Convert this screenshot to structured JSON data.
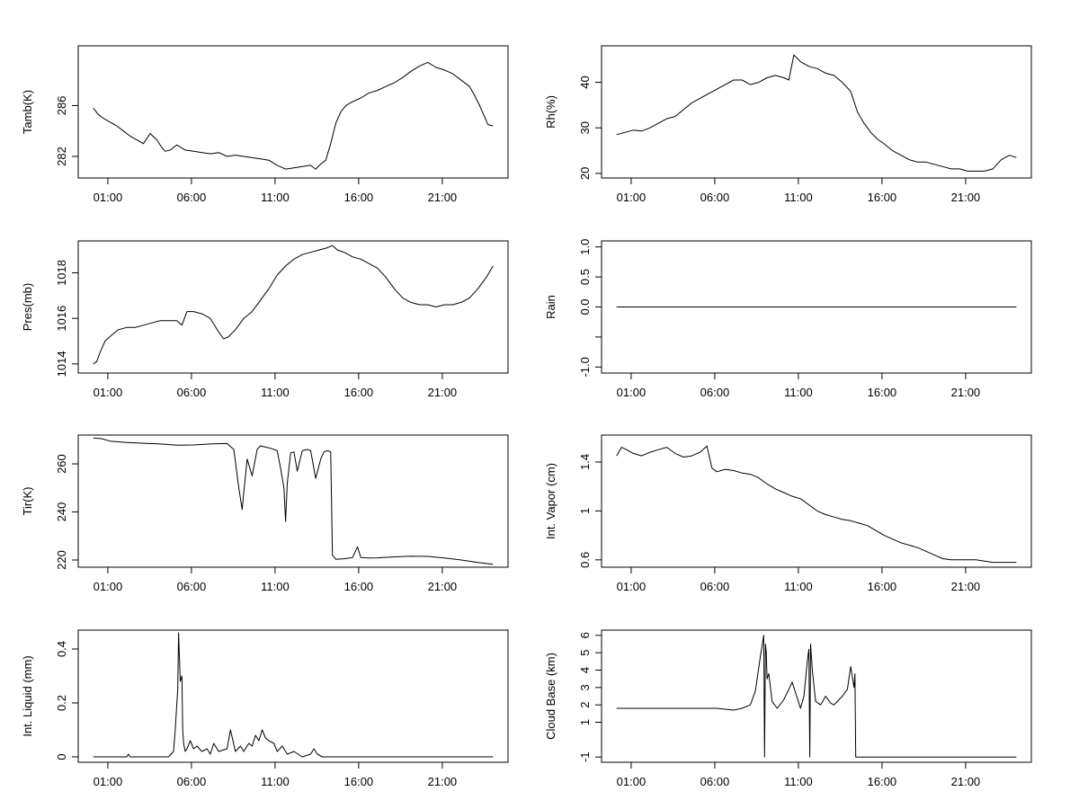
{
  "chart_data": [
    {
      "type": "line",
      "ylabel": "Tamb(K)",
      "xticks": [
        "01:00",
        "06:00",
        "11:00",
        "16:00",
        "21:00"
      ],
      "yticks": [
        282,
        286
      ],
      "ylim": [
        280.3,
        290.7
      ],
      "x": [
        0.0,
        0.3,
        0.6,
        1.0,
        1.4,
        1.8,
        2.2,
        2.6,
        3.0,
        3.4,
        3.8,
        4.1,
        4.3,
        4.6,
        5.0,
        5.5,
        6.0,
        6.5,
        7.0,
        7.5,
        8.0,
        8.5,
        9.0,
        9.5,
        10.0,
        10.5,
        11.0,
        11.5,
        12.0,
        12.5,
        13.0,
        13.3,
        13.6,
        13.9,
        14.2,
        14.5,
        14.8,
        15.1,
        15.5,
        16.0,
        16.5,
        17.0,
        17.5,
        18.0,
        18.5,
        19.0,
        19.5,
        20.0,
        20.5,
        21.0,
        21.5,
        22.0,
        22.5,
        22.8,
        23.1,
        23.4,
        23.6,
        23.9
      ],
      "y": [
        285.8,
        285.3,
        285.0,
        284.7,
        284.4,
        284.0,
        283.6,
        283.3,
        283.0,
        283.8,
        283.3,
        282.7,
        282.4,
        282.5,
        282.9,
        282.5,
        282.4,
        282.3,
        282.2,
        282.3,
        282.0,
        282.1,
        282.0,
        281.9,
        281.8,
        281.7,
        281.3,
        281.0,
        281.1,
        281.2,
        281.3,
        281.0,
        281.4,
        281.7,
        283.0,
        284.6,
        285.5,
        286.0,
        286.3,
        286.6,
        287.0,
        287.2,
        287.5,
        287.8,
        288.2,
        288.7,
        289.1,
        289.4,
        289.0,
        288.8,
        288.5,
        288.0,
        287.5,
        286.8,
        286.0,
        285.1,
        284.5,
        284.4
      ]
    },
    {
      "type": "line",
      "ylabel": "Rh(%)",
      "xticks": [
        "01:00",
        "06:00",
        "11:00",
        "16:00",
        "21:00"
      ],
      "yticks": [
        20,
        30,
        40
      ],
      "ylim": [
        19,
        48
      ],
      "x": [
        0.0,
        0.5,
        1.0,
        1.5,
        2.0,
        2.5,
        3.0,
        3.5,
        4.0,
        4.5,
        5.0,
        5.5,
        6.0,
        6.5,
        7.0,
        7.5,
        8.0,
        8.5,
        9.0,
        9.5,
        10.0,
        10.3,
        10.6,
        11.0,
        11.5,
        12.0,
        12.5,
        13.0,
        13.5,
        14.0,
        14.4,
        14.8,
        15.2,
        15.6,
        16.0,
        16.5,
        17.0,
        17.5,
        18.0,
        18.5,
        19.0,
        19.5,
        20.0,
        20.5,
        21.0,
        21.5,
        22.0,
        22.5,
        23.0,
        23.5,
        23.9
      ],
      "y": [
        28.5,
        29.0,
        29.5,
        29.3,
        30.0,
        31.0,
        32.0,
        32.5,
        34.0,
        35.5,
        36.5,
        37.5,
        38.5,
        39.5,
        40.5,
        40.5,
        39.5,
        40.0,
        41.0,
        41.5,
        41.0,
        40.5,
        46.0,
        44.5,
        43.5,
        43.0,
        42.0,
        41.5,
        40.0,
        38.0,
        33.5,
        31.0,
        29.0,
        27.5,
        26.5,
        25.0,
        24.0,
        23.0,
        22.5,
        22.5,
        22.0,
        21.5,
        21.0,
        21.0,
        20.5,
        20.5,
        20.5,
        21.0,
        23.0,
        24.0,
        23.5
      ]
    },
    {
      "type": "line",
      "ylabel": "Pres(mb)",
      "xticks": [
        "01:00",
        "06:00",
        "11:00",
        "16:00",
        "21:00"
      ],
      "yticks": [
        1014,
        1016,
        1018
      ],
      "ylim": [
        1013.6,
        1019.4
      ],
      "x": [
        0.0,
        0.2,
        0.4,
        0.7,
        1.0,
        1.5,
        2.0,
        2.5,
        3.0,
        3.5,
        4.0,
        4.5,
        5.0,
        5.3,
        5.6,
        6.0,
        6.5,
        7.0,
        7.5,
        7.8,
        8.1,
        8.5,
        9.0,
        9.5,
        10.0,
        10.5,
        11.0,
        11.5,
        12.0,
        12.5,
        13.0,
        13.5,
        14.0,
        14.3,
        14.6,
        15.0,
        15.5,
        16.0,
        16.5,
        17.0,
        17.5,
        18.0,
        18.5,
        19.0,
        19.5,
        20.0,
        20.5,
        21.0,
        21.5,
        22.0,
        22.5,
        23.0,
        23.5,
        23.9
      ],
      "y": [
        1014.0,
        1014.1,
        1014.5,
        1015.0,
        1015.2,
        1015.5,
        1015.6,
        1015.6,
        1015.7,
        1015.8,
        1015.9,
        1015.9,
        1015.9,
        1015.7,
        1016.3,
        1016.3,
        1016.2,
        1016.0,
        1015.4,
        1015.1,
        1015.2,
        1015.5,
        1016.0,
        1016.3,
        1016.8,
        1017.3,
        1017.9,
        1018.3,
        1018.6,
        1018.8,
        1018.9,
        1019.0,
        1019.1,
        1019.2,
        1019.0,
        1018.9,
        1018.7,
        1018.6,
        1018.4,
        1018.2,
        1017.8,
        1017.3,
        1016.9,
        1016.7,
        1016.6,
        1016.6,
        1016.5,
        1016.6,
        1016.6,
        1016.7,
        1016.9,
        1017.3,
        1017.8,
        1018.3
      ]
    },
    {
      "type": "line",
      "ylabel": "Rain",
      "xticks": [
        "01:00",
        "06:00",
        "11:00",
        "16:00",
        "21:00"
      ],
      "yticks": [
        -1.0,
        -0.5,
        0.0,
        0.5,
        1.0
      ],
      "yticklabels": [
        "-1.0",
        "",
        "0.0",
        "0.5",
        "1.0"
      ],
      "ylim": [
        -1.1,
        1.1
      ],
      "x": [
        0.0,
        23.9
      ],
      "y": [
        0.0,
        0.0
      ]
    },
    {
      "type": "line",
      "ylabel": "Tir(K)",
      "xticks": [
        "01:00",
        "06:00",
        "11:00",
        "16:00",
        "21:00"
      ],
      "yticks": [
        220,
        240,
        260
      ],
      "ylim": [
        217,
        272
      ],
      "x": [
        0.0,
        0.5,
        1.0,
        2.0,
        3.0,
        4.0,
        5.0,
        6.0,
        7.0,
        8.0,
        8.4,
        8.7,
        8.9,
        9.0,
        9.2,
        9.5,
        9.8,
        10.0,
        10.3,
        10.6,
        11.0,
        11.2,
        11.4,
        11.5,
        11.6,
        11.8,
        12.0,
        12.2,
        12.5,
        12.8,
        13.0,
        13.3,
        13.6,
        13.8,
        14.0,
        14.2,
        14.3,
        14.5,
        15.0,
        15.5,
        15.8,
        16.0,
        16.5,
        17.0,
        18.0,
        19.0,
        20.0,
        21.0,
        22.0,
        23.0,
        23.9
      ],
      "y": [
        270.8,
        270.5,
        269.5,
        268.9,
        268.6,
        268.3,
        267.8,
        267.9,
        268.3,
        268.5,
        266.0,
        250.0,
        241.0,
        248.0,
        262.0,
        255.0,
        266.0,
        267.5,
        267.0,
        266.5,
        265.5,
        258.0,
        250.0,
        236.0,
        252.0,
        264.5,
        265.0,
        257.0,
        265.5,
        266.0,
        265.5,
        254.0,
        262.0,
        265.0,
        265.5,
        265.0,
        222.0,
        220.3,
        220.5,
        221.0,
        225.5,
        221.0,
        220.8,
        220.9,
        221.3,
        221.6,
        221.5,
        220.8,
        220.0,
        219.0,
        218.2
      ]
    },
    {
      "type": "line",
      "ylabel": "Int. Vapor (cm)",
      "xticks": [
        "01:00",
        "06:00",
        "11:00",
        "16:00",
        "21:00"
      ],
      "yticks": [
        0.6,
        1.0,
        1.4
      ],
      "ylim": [
        0.54,
        1.62
      ],
      "x": [
        0.0,
        0.3,
        0.6,
        1.0,
        1.5,
        2.0,
        2.5,
        3.0,
        3.5,
        4.0,
        4.5,
        5.0,
        5.4,
        5.7,
        6.0,
        6.5,
        7.0,
        7.5,
        8.0,
        8.5,
        9.0,
        9.5,
        10.0,
        10.5,
        11.0,
        11.5,
        12.0,
        12.5,
        13.0,
        13.5,
        14.0,
        14.5,
        15.0,
        15.5,
        16.0,
        16.5,
        17.0,
        17.5,
        18.0,
        18.5,
        19.0,
        19.5,
        20.0,
        20.5,
        21.0,
        21.5,
        22.0,
        22.5,
        23.0,
        23.5,
        23.9
      ],
      "y": [
        1.45,
        1.52,
        1.5,
        1.47,
        1.45,
        1.48,
        1.5,
        1.52,
        1.47,
        1.44,
        1.45,
        1.48,
        1.53,
        1.35,
        1.32,
        1.34,
        1.33,
        1.31,
        1.3,
        1.27,
        1.22,
        1.18,
        1.15,
        1.12,
        1.1,
        1.05,
        1.0,
        0.97,
        0.95,
        0.93,
        0.92,
        0.9,
        0.88,
        0.84,
        0.8,
        0.77,
        0.74,
        0.72,
        0.7,
        0.67,
        0.64,
        0.61,
        0.6,
        0.6,
        0.6,
        0.6,
        0.59,
        0.58,
        0.58,
        0.58,
        0.58
      ]
    },
    {
      "type": "line",
      "ylabel": "Int. Liquid (mm)",
      "xticks": [
        "01:00",
        "06:00",
        "11:00",
        "16:00",
        "21:00"
      ],
      "yticks": [
        0.0,
        0.2,
        0.4
      ],
      "ylim": [
        -0.02,
        0.47
      ],
      "x": [
        0.0,
        1.0,
        2.0,
        2.1,
        2.2,
        3.0,
        4.5,
        4.8,
        4.9,
        5.0,
        5.05,
        5.1,
        5.2,
        5.3,
        5.35,
        5.4,
        5.5,
        5.6,
        5.8,
        6.0,
        6.2,
        6.5,
        6.8,
        7.0,
        7.2,
        7.5,
        8.0,
        8.2,
        8.5,
        8.8,
        9.0,
        9.3,
        9.5,
        9.7,
        9.9,
        10.1,
        10.3,
        10.5,
        10.8,
        11.0,
        11.3,
        11.6,
        12.0,
        12.5,
        13.0,
        13.2,
        13.4,
        13.7,
        14.0,
        14.5,
        15.0,
        17.0,
        19.0,
        21.0,
        23.9
      ],
      "y": [
        0.0,
        0.0,
        0.0,
        0.01,
        0.0,
        0.0,
        0.0,
        0.02,
        0.1,
        0.2,
        0.25,
        0.46,
        0.28,
        0.3,
        0.1,
        0.05,
        0.02,
        0.03,
        0.06,
        0.03,
        0.04,
        0.02,
        0.03,
        0.01,
        0.05,
        0.02,
        0.03,
        0.1,
        0.02,
        0.04,
        0.02,
        0.05,
        0.04,
        0.08,
        0.06,
        0.1,
        0.07,
        0.06,
        0.05,
        0.02,
        0.04,
        0.01,
        0.02,
        0.0,
        0.01,
        0.03,
        0.01,
        0.0,
        0.0,
        0.0,
        0.0,
        0.0,
        0.0,
        0.0,
        0.0
      ]
    },
    {
      "type": "line",
      "ylabel": "Cloud Base (km)",
      "xticks": [
        "01:00",
        "06:00",
        "11:00",
        "16:00",
        "21:00"
      ],
      "yticks": [
        -1,
        1,
        2,
        3,
        4,
        5,
        6
      ],
      "ylim": [
        -1.3,
        6.3
      ],
      "x": [
        0.0,
        1.0,
        2.0,
        3.0,
        4.0,
        5.0,
        6.0,
        7.0,
        7.5,
        8.0,
        8.3,
        8.6,
        8.8,
        8.85,
        8.9,
        8.95,
        9.0,
        9.1,
        9.3,
        9.6,
        10.0,
        10.5,
        11.0,
        11.2,
        11.4,
        11.5,
        11.55,
        11.6,
        11.7,
        11.9,
        12.2,
        12.5,
        12.8,
        13.0,
        13.3,
        13.5,
        13.8,
        14.0,
        14.2,
        14.25,
        14.3,
        15.0,
        17.0,
        19.0,
        21.0,
        23.9
      ],
      "y": [
        1.8,
        1.8,
        1.8,
        1.8,
        1.8,
        1.8,
        1.8,
        1.7,
        1.8,
        2.0,
        2.8,
        4.8,
        6.0,
        -1.0,
        5.5,
        5.0,
        3.5,
        3.8,
        2.2,
        1.8,
        2.3,
        3.3,
        1.8,
        2.5,
        4.5,
        5.2,
        -1.0,
        5.5,
        4.0,
        2.2,
        2.0,
        2.5,
        2.1,
        2.0,
        2.3,
        2.5,
        2.9,
        4.2,
        3.0,
        3.8,
        -1.0,
        -1.0,
        -1.0,
        -1.0,
        -1.0,
        -1.0
      ]
    }
  ]
}
